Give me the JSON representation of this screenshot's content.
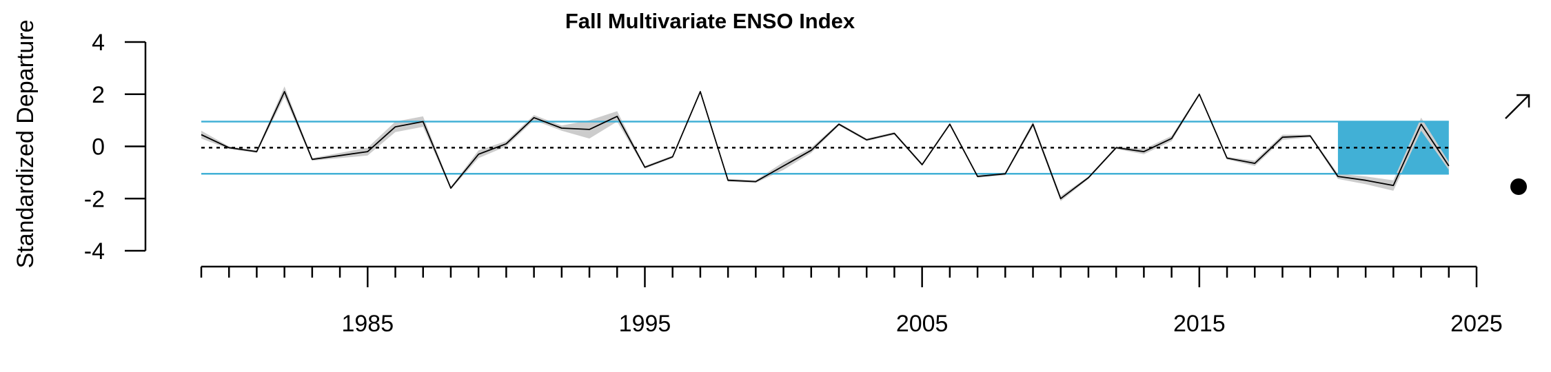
{
  "chart_data": {
    "type": "line",
    "title": "Fall Multivariate ENSO Index",
    "ylabel": "Standardized Departure",
    "xlabel": "",
    "ylim": [
      -4,
      4
    ],
    "xlim": [
      1979,
      2025
    ],
    "y_ticks": [
      "4",
      "2",
      "0",
      "-2",
      "-4"
    ],
    "x_ticks": [
      "1985",
      "1995",
      "2005",
      "2015",
      "2025"
    ],
    "reference_lines": {
      "mean": -0.05,
      "upper_sd": 0.95,
      "lower_sd": -1.05
    },
    "highlight_years": [
      2020,
      2024
    ],
    "trend_symbol": "↗",
    "status_symbol": "●",
    "colors": {
      "line": "#000000",
      "band": "#cccccc",
      "sd_lines": "#41b0d6",
      "highlight": "#41b0d6"
    },
    "series": [
      {
        "x": [
          1979,
          1980,
          1981,
          1982,
          1983,
          1984,
          1985,
          1986,
          1987,
          1988,
          1989,
          1990,
          1991,
          1992,
          1993,
          1994,
          1995,
          1996,
          1997,
          1998,
          1999,
          2000,
          2001,
          2002,
          2003,
          2004,
          2005,
          2006,
          2007,
          2008,
          2009,
          2010,
          2011,
          2012,
          2013,
          2014,
          2015,
          2016,
          2017,
          2018,
          2019,
          2020,
          2021,
          2022,
          2023,
          2024
        ],
        "values": [
          0.45,
          -0.05,
          -0.2,
          2.1,
          -0.5,
          -0.35,
          -0.2,
          0.75,
          0.95,
          -1.6,
          -0.3,
          0.1,
          1.1,
          0.7,
          0.65,
          1.15,
          -0.8,
          -0.4,
          2.1,
          -1.3,
          -1.35,
          -0.75,
          -0.15,
          0.85,
          0.25,
          0.5,
          -0.7,
          0.85,
          -1.15,
          -1.05,
          0.85,
          -2.0,
          -1.2,
          -0.05,
          -0.2,
          0.3,
          2.0,
          -0.45,
          -0.65,
          0.35,
          0.4,
          -1.15,
          -1.3,
          -1.5,
          0.85,
          -0.75
        ],
        "uncertainty": [
          0.15,
          0.05,
          0.05,
          0.2,
          0.05,
          0.1,
          0.15,
          0.2,
          0.2,
          0.05,
          0.15,
          0.1,
          0.1,
          0.1,
          0.35,
          0.2,
          0.05,
          0.05,
          0.05,
          0.05,
          0.05,
          0.15,
          0.1,
          0.05,
          0.05,
          0.05,
          0.05,
          0.05,
          0.05,
          0.05,
          0.1,
          0.1,
          0.05,
          0.05,
          0.1,
          0.1,
          0.05,
          0.05,
          0.1,
          0.1,
          0.05,
          0.1,
          0.15,
          0.2,
          0.25,
          0.15
        ]
      }
    ]
  }
}
